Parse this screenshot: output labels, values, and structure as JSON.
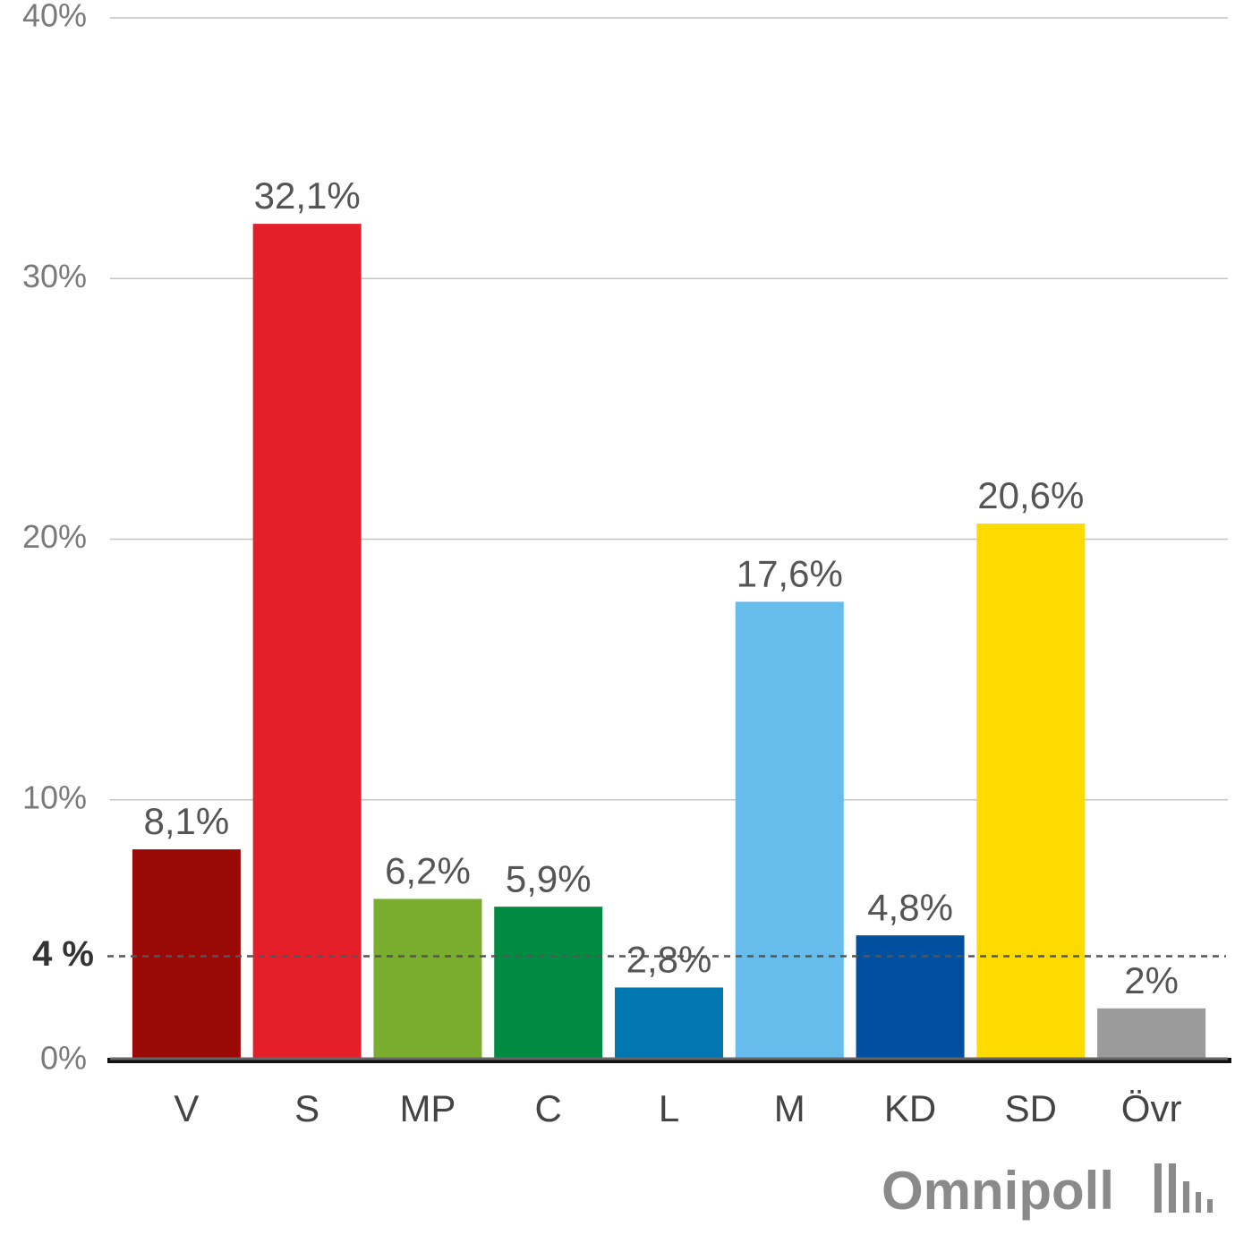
{
  "chart_data": {
    "type": "bar",
    "categories": [
      "V",
      "S",
      "MP",
      "C",
      "L",
      "M",
      "KD",
      "SD",
      "Övr"
    ],
    "values": [
      8.1,
      32.1,
      6.2,
      5.9,
      2.8,
      17.6,
      4.8,
      20.6,
      2
    ],
    "value_labels": [
      "8,1%",
      "32,1%",
      "6,2%",
      "5,9%",
      "2,8%",
      "17,6%",
      "4,8%",
      "20,6%",
      "2%"
    ],
    "colors": [
      "#990a07",
      "#e41f2a",
      "#7aad2e",
      "#008b42",
      "#0077b0",
      "#66bceb",
      "#00509f",
      "#fedb00",
      "#9b9b9b"
    ],
    "ylim": [
      0,
      40
    ],
    "yticks": [
      {
        "value": 0,
        "label": "0%"
      },
      {
        "value": 10,
        "label": "10%"
      },
      {
        "value": 20,
        "label": "20%"
      },
      {
        "value": 30,
        "label": "30%"
      },
      {
        "value": 40,
        "label": "40%"
      }
    ],
    "grid": true,
    "threshold": {
      "value": 4,
      "label": "4 %"
    },
    "watermark": "Omnipoll"
  }
}
